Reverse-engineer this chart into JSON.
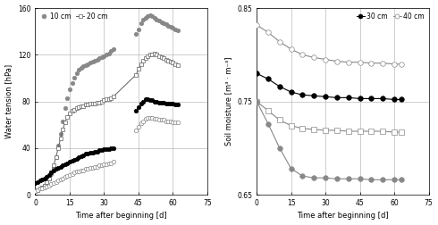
{
  "left": {
    "xlabel": "Time after beginning [d]",
    "ylabel": "Water tension [hPa]",
    "xlim": [
      0,
      75
    ],
    "ylim": [
      0,
      160
    ],
    "xticks": [
      0,
      15,
      30,
      45,
      60,
      75
    ],
    "yticks": [
      0,
      40,
      80,
      120,
      160
    ],
    "series": [
      {
        "label": "10 cm",
        "color": "#888888",
        "marker": "o",
        "markersize": 3.2,
        "markerfacecolor": "#888888",
        "markeredgecolor": "#888888",
        "linestyle": "none",
        "x": [
          0,
          1,
          2,
          3,
          4,
          5,
          6,
          7,
          8,
          9,
          10,
          11,
          12,
          13,
          14,
          15,
          16,
          17,
          18,
          19,
          20,
          21,
          22,
          23,
          24,
          25,
          26,
          27,
          28,
          29,
          30,
          31,
          32,
          33,
          34,
          44,
          45,
          46,
          47,
          48,
          49,
          50,
          51,
          52,
          53,
          54,
          55,
          56,
          57,
          58,
          59,
          60,
          61,
          62
        ],
        "y": [
          3,
          4,
          5,
          6,
          8,
          10,
          14,
          18,
          24,
          32,
          42,
          52,
          63,
          74,
          83,
          90,
          96,
          100,
          104,
          107,
          109,
          110,
          111,
          112,
          113,
          114,
          115,
          116,
          117,
          118,
          119,
          120,
          121,
          123,
          125,
          138,
          142,
          147,
          150,
          152,
          153,
          154,
          153,
          152,
          150,
          149,
          148,
          147,
          146,
          145,
          144,
          143,
          142,
          141
        ]
      },
      {
        "label": "20 cm",
        "color": "#606060",
        "marker": "s",
        "markersize": 3.2,
        "markerfacecolor": "#ffffff",
        "markeredgecolor": "#606060",
        "linestyle": "-",
        "linewidth": 0.7,
        "x": [
          0,
          1,
          2,
          3,
          4,
          5,
          6,
          7,
          8,
          9,
          10,
          11,
          12,
          13,
          14,
          15,
          16,
          17,
          18,
          19,
          20,
          21,
          22,
          23,
          24,
          25,
          26,
          27,
          28,
          29,
          30,
          31,
          32,
          33,
          34,
          44,
          45,
          46,
          47,
          48,
          49,
          50,
          51,
          52,
          53,
          54,
          55,
          56,
          57,
          58,
          59,
          60,
          61,
          62
        ],
        "y": [
          3,
          4,
          5,
          6,
          8,
          11,
          14,
          19,
          25,
          32,
          40,
          48,
          56,
          62,
          67,
          70,
          72,
          73,
          74,
          75,
          76,
          76,
          77,
          77,
          78,
          78,
          78,
          79,
          79,
          80,
          81,
          82,
          82,
          83,
          84,
          103,
          108,
          112,
          115,
          117,
          119,
          120,
          120,
          121,
          120,
          119,
          118,
          117,
          116,
          115,
          114,
          113,
          112,
          111
        ]
      },
      {
        "label": "30 cm",
        "color": "#000000",
        "marker": "o",
        "markersize": 3.2,
        "markerfacecolor": "#000000",
        "markeredgecolor": "#000000",
        "linestyle": "none",
        "x": [
          0,
          1,
          2,
          3,
          4,
          5,
          6,
          7,
          8,
          9,
          10,
          11,
          12,
          13,
          14,
          15,
          16,
          17,
          18,
          19,
          20,
          21,
          22,
          23,
          24,
          25,
          26,
          27,
          28,
          29,
          30,
          31,
          32,
          33,
          34,
          44,
          45,
          46,
          47,
          48,
          49,
          50,
          51,
          52,
          53,
          54,
          55,
          56,
          57,
          58,
          59,
          60,
          61,
          62
        ],
        "y": [
          10,
          11,
          12,
          13,
          14,
          15,
          17,
          19,
          21,
          22,
          23,
          24,
          25,
          26,
          27,
          28,
          29,
          30,
          31,
          32,
          33,
          34,
          35,
          35,
          36,
          36,
          37,
          37,
          38,
          38,
          39,
          39,
          39,
          40,
          40,
          72,
          75,
          78,
          80,
          82,
          82,
          81,
          81,
          80,
          80,
          79,
          79,
          79,
          78,
          78,
          78,
          78,
          77,
          77
        ]
      },
      {
        "label": "40 cm",
        "color": "#888888",
        "marker": "o",
        "markersize": 3.2,
        "markerfacecolor": "#ffffff",
        "markeredgecolor": "#888888",
        "linestyle": "none",
        "x": [
          0,
          1,
          2,
          3,
          4,
          5,
          6,
          7,
          8,
          9,
          10,
          11,
          12,
          13,
          14,
          15,
          16,
          17,
          18,
          19,
          20,
          21,
          22,
          23,
          24,
          25,
          26,
          27,
          28,
          29,
          30,
          31,
          32,
          33,
          34,
          44,
          45,
          46,
          47,
          48,
          49,
          50,
          51,
          52,
          53,
          54,
          55,
          56,
          57,
          58,
          59,
          60,
          61,
          62
        ],
        "y": [
          3,
          4,
          5,
          5,
          6,
          7,
          8,
          9,
          10,
          11,
          12,
          13,
          14,
          15,
          16,
          17,
          18,
          19,
          20,
          20,
          21,
          21,
          22,
          22,
          23,
          23,
          24,
          24,
          25,
          25,
          26,
          26,
          27,
          27,
          28,
          55,
          58,
          61,
          63,
          65,
          66,
          66,
          66,
          65,
          65,
          64,
          64,
          64,
          63,
          63,
          63,
          62,
          62,
          62
        ]
      }
    ],
    "legend": [
      {
        "label": "10 cm",
        "color": "#888888",
        "marker": "o",
        "markerfacecolor": "#888888",
        "linestyle": "none"
      },
      {
        "label": "20 cm",
        "color": "#606060",
        "marker": "s",
        "markerfacecolor": "#ffffff",
        "linestyle": "-"
      }
    ]
  },
  "right": {
    "xlabel": "Time after beginning [d]",
    "ylabel": "Soil moisture [m³ · m⁻³]",
    "xlim": [
      0,
      75
    ],
    "ylim": [
      0.65,
      0.85
    ],
    "xticks": [
      0,
      15,
      30,
      45,
      60,
      75
    ],
    "yticks": [
      0.65,
      0.75,
      0.85
    ],
    "series": [
      {
        "label": "40 cm",
        "color": "#888888",
        "marker": "o",
        "markersize": 4,
        "markerfacecolor": "#ffffff",
        "markeredgecolor": "#888888",
        "linestyle": "-",
        "linewidth": 0.8,
        "x": [
          0,
          5,
          10,
          15,
          20,
          25,
          30,
          35,
          40,
          45,
          50,
          55,
          60,
          63
        ],
        "y": [
          0.832,
          0.824,
          0.814,
          0.806,
          0.8,
          0.797,
          0.795,
          0.793,
          0.792,
          0.792,
          0.791,
          0.791,
          0.79,
          0.79
        ]
      },
      {
        "label": "30 cm",
        "color": "#000000",
        "marker": "o",
        "markersize": 4,
        "markerfacecolor": "#000000",
        "markeredgecolor": "#000000",
        "linestyle": "-",
        "linewidth": 0.8,
        "x": [
          0,
          5,
          10,
          15,
          20,
          25,
          30,
          35,
          40,
          45,
          50,
          55,
          60,
          63
        ],
        "y": [
          0.78,
          0.774,
          0.766,
          0.76,
          0.757,
          0.756,
          0.755,
          0.754,
          0.754,
          0.753,
          0.753,
          0.753,
          0.752,
          0.752
        ]
      },
      {
        "label": "20 cm",
        "color": "#888888",
        "marker": "s",
        "markersize": 4,
        "markerfacecolor": "#ffffff",
        "markeredgecolor": "#888888",
        "linestyle": "-",
        "linewidth": 0.8,
        "x": [
          0,
          5,
          10,
          15,
          20,
          25,
          30,
          35,
          40,
          45,
          50,
          55,
          60,
          63
        ],
        "y": [
          0.75,
          0.74,
          0.73,
          0.724,
          0.721,
          0.72,
          0.719,
          0.719,
          0.718,
          0.718,
          0.718,
          0.718,
          0.717,
          0.717
        ]
      },
      {
        "label": "10 cm",
        "color": "#888888",
        "marker": "o",
        "markersize": 4,
        "markerfacecolor": "#888888",
        "markeredgecolor": "#888888",
        "linestyle": "-",
        "linewidth": 0.8,
        "x": [
          0,
          5,
          10,
          15,
          20,
          25,
          30,
          35,
          40,
          45,
          50,
          55,
          60,
          63
        ],
        "y": [
          0.75,
          0.726,
          0.7,
          0.678,
          0.67,
          0.668,
          0.668,
          0.667,
          0.667,
          0.667,
          0.666,
          0.666,
          0.666,
          0.666
        ]
      }
    ],
    "legend": [
      {
        "label": "30 cm",
        "color": "#000000",
        "marker": "o",
        "markerfacecolor": "#000000",
        "linestyle": "-"
      },
      {
        "label": "40 cm",
        "color": "#888888",
        "marker": "o",
        "markerfacecolor": "#ffffff",
        "linestyle": "-"
      }
    ]
  }
}
